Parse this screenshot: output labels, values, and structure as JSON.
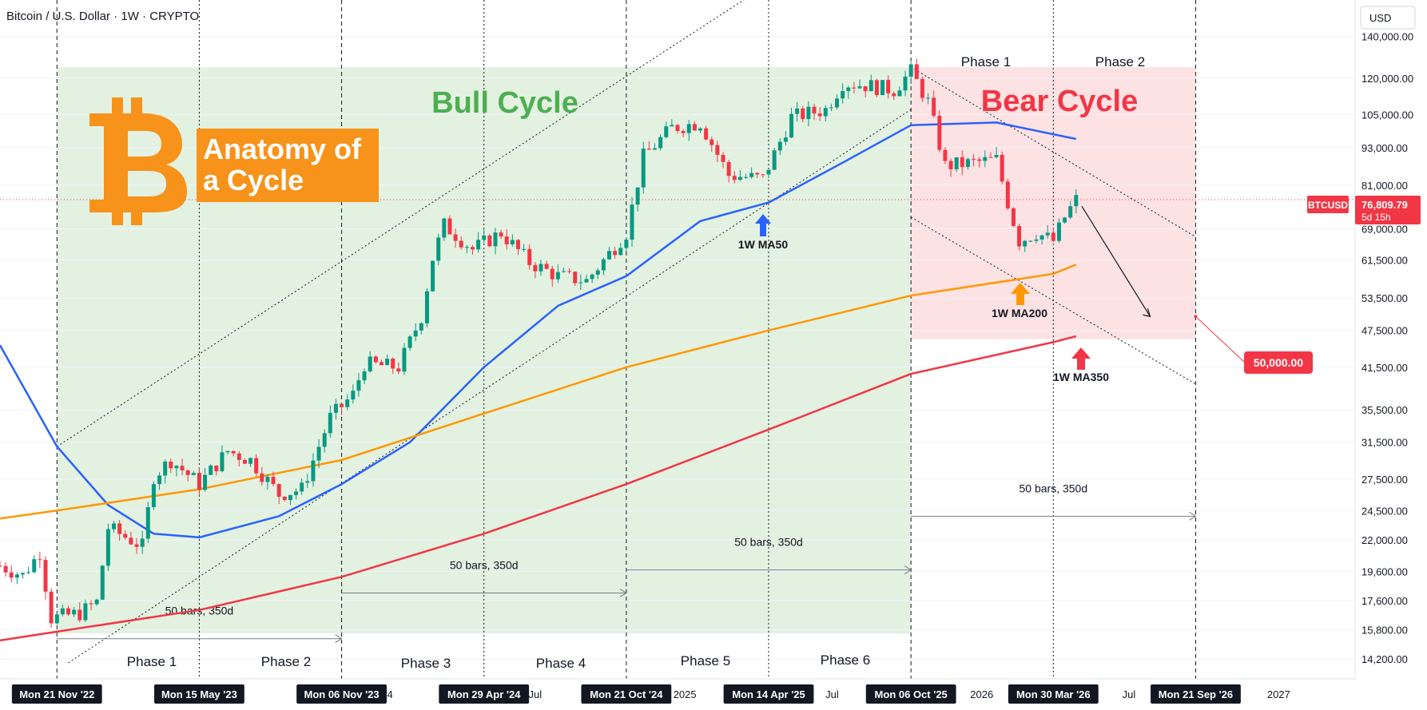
{
  "header": {
    "symbol_title": "Bitcoin / U.S. Dollar · 1W · CRYPTO",
    "currency": "USD"
  },
  "colors": {
    "bull_zone": "#e3f1e1",
    "bear_zone": "#fde2e4",
    "ma50": "#2962ff",
    "ma200": "#ff9800",
    "ma350": "#f23645",
    "candle_up": "#089981",
    "candle_down": "#f23645",
    "bitcoin_orange": "#f7931a",
    "bull_text": "#4caf50",
    "bear_text": "#f23645"
  },
  "icons": {
    "logo": "bitcoin-logo-icon",
    "arrow": "up-arrow-icon"
  },
  "annotations": {
    "bull_cycle": "Bull Cycle",
    "bear_cycle": "Bear Cycle",
    "anatomy_line1": "Anatomy of",
    "anatomy_line2": "a Cycle",
    "bars_label": "50 bars, 350d",
    "ma50_label": "1W MA50",
    "ma200_label": "1W MA200",
    "ma350_label": "1W MA350",
    "target_label": "50,000.00",
    "phases_bottom": [
      "Phase 1",
      "Phase 2",
      "Phase 3",
      "Phase 4",
      "Phase 5",
      "Phase 6"
    ],
    "phases_top": [
      "Phase 1",
      "Phase 2"
    ]
  },
  "price_tag": {
    "symbol": "BTCUSD",
    "price": "76,809.79",
    "countdown": "5d 15h"
  },
  "chart_data": {
    "type": "line",
    "title": "Bitcoin / U.S. Dollar · 1W · CRYPTO",
    "yscale": "log",
    "ylim": [
      13200,
      160000
    ],
    "xlim": [
      "2022-09-12",
      "2027-04-05"
    ],
    "y_ticks": [
      14200,
      15800,
      17600,
      19600,
      22000,
      24500,
      27500,
      31500,
      35500,
      41500,
      47500,
      53500,
      61500,
      69000,
      81000,
      93000,
      105000,
      120000,
      140000
    ],
    "y_tick_labels": [
      "14,200.00",
      "15,800.00",
      "17,600.00",
      "19,600.00",
      "22,000.00",
      "24,500.00",
      "27,500.00",
      "31,500.00",
      "35,500.00",
      "41,500.00",
      "47,500.00",
      "53,500.00",
      "61,500.00",
      "69,000.00",
      "81,000.00",
      "93,000.00",
      "105,000.00",
      "120,000.00",
      "140,000.00"
    ],
    "x_ticks": [
      {
        "date": "2022-11-21",
        "label": "Mon 21 Nov '22",
        "highlight": true
      },
      {
        "date": "2023-05-15",
        "label": "Mon 15 May '23",
        "highlight": true
      },
      {
        "date": "2023-11-06",
        "label": "Mon 06 Nov '23",
        "highlight": true
      },
      {
        "date": "2024-01-01",
        "label": "24",
        "highlight": false
      },
      {
        "date": "2024-04-29",
        "label": "Mon 29 Apr '24",
        "highlight": true
      },
      {
        "date": "2024-07-01",
        "label": "Jul",
        "highlight": false
      },
      {
        "date": "2024-10-21",
        "label": "Mon 21 Oct '24",
        "highlight": true
      },
      {
        "date": "2025-01-01",
        "label": "2025",
        "highlight": false
      },
      {
        "date": "2025-04-14",
        "label": "Mon 14 Apr '25",
        "highlight": true
      },
      {
        "date": "2025-07-01",
        "label": "Jul",
        "highlight": false
      },
      {
        "date": "2025-10-06",
        "label": "Mon 06 Oct '25",
        "highlight": true
      },
      {
        "date": "2026-01-01",
        "label": "2026",
        "highlight": false
      },
      {
        "date": "2026-03-30",
        "label": "Mon 30 Mar '26",
        "highlight": true
      },
      {
        "date": "2026-07-01",
        "label": "Jul",
        "highlight": false
      },
      {
        "date": "2026-09-21",
        "label": "Mon 21 Sep '26",
        "highlight": true
      },
      {
        "date": "2027-01-01",
        "label": "2027",
        "highlight": false
      }
    ],
    "cycle_markers": [
      "2022-11-21",
      "2023-11-06",
      "2024-10-21",
      "2025-10-06",
      "2026-09-21"
    ],
    "minor_markers": [
      "2023-05-15",
      "2024-04-29",
      "2025-04-14",
      "2026-03-30"
    ],
    "zones": [
      {
        "name": "Bull Cycle",
        "x": [
          "2022-11-21",
          "2025-10-06"
        ],
        "y": [
          15600,
          125000
        ]
      },
      {
        "name": "Bear Cycle",
        "x": [
          "2025-10-06",
          "2026-09-21"
        ],
        "y": [
          46000,
          125000
        ]
      }
    ],
    "price_path": [
      {
        "date": "2022-09-12",
        "close": 20000
      },
      {
        "date": "2022-10-10",
        "close": 19300
      },
      {
        "date": "2022-10-31",
        "close": 21000
      },
      {
        "date": "2022-11-14",
        "close": 16500
      },
      {
        "date": "2022-12-19",
        "close": 16800
      },
      {
        "date": "2023-01-09",
        "close": 17500
      },
      {
        "date": "2023-01-23",
        "close": 23000
      },
      {
        "date": "2023-03-06",
        "close": 21500
      },
      {
        "date": "2023-03-20",
        "close": 27800
      },
      {
        "date": "2023-04-10",
        "close": 29500
      },
      {
        "date": "2023-05-15",
        "close": 27000
      },
      {
        "date": "2023-06-19",
        "close": 30500
      },
      {
        "date": "2023-07-17",
        "close": 29500
      },
      {
        "date": "2023-08-21",
        "close": 26000
      },
      {
        "date": "2023-09-18",
        "close": 26500
      },
      {
        "date": "2023-10-23",
        "close": 34500
      },
      {
        "date": "2023-11-20",
        "close": 37500
      },
      {
        "date": "2023-12-04",
        "close": 42000
      },
      {
        "date": "2024-01-15",
        "close": 41500
      },
      {
        "date": "2024-02-12",
        "close": 50000
      },
      {
        "date": "2024-02-26",
        "close": 62000
      },
      {
        "date": "2024-03-11",
        "close": 70000
      },
      {
        "date": "2024-04-15",
        "close": 64000
      },
      {
        "date": "2024-05-20",
        "close": 68000
      },
      {
        "date": "2024-06-24",
        "close": 61000
      },
      {
        "date": "2024-07-29",
        "close": 58000
      },
      {
        "date": "2024-09-02",
        "close": 57000
      },
      {
        "date": "2024-09-30",
        "close": 63000
      },
      {
        "date": "2024-10-21",
        "close": 68000
      },
      {
        "date": "2024-11-11",
        "close": 90000
      },
      {
        "date": "2024-12-16",
        "close": 100000
      },
      {
        "date": "2025-01-20",
        "close": 102000
      },
      {
        "date": "2025-02-24",
        "close": 84000
      },
      {
        "date": "2025-04-07",
        "close": 83000
      },
      {
        "date": "2025-05-12",
        "close": 104000
      },
      {
        "date": "2025-06-23",
        "close": 107000
      },
      {
        "date": "2025-07-14",
        "close": 118000
      },
      {
        "date": "2025-08-11",
        "close": 117000
      },
      {
        "date": "2025-09-15",
        "close": 115000
      },
      {
        "date": "2025-10-06",
        "close": 123000
      },
      {
        "date": "2025-10-27",
        "close": 110000
      },
      {
        "date": "2025-11-17",
        "close": 87000
      },
      {
        "date": "2025-12-22",
        "close": 88000
      },
      {
        "date": "2026-01-19",
        "close": 89000
      },
      {
        "date": "2026-02-02",
        "close": 76000
      },
      {
        "date": "2026-02-16",
        "close": 66000
      },
      {
        "date": "2026-03-09",
        "close": 68000
      },
      {
        "date": "2026-03-30",
        "close": 66000
      },
      {
        "date": "2026-04-13",
        "close": 72000
      },
      {
        "date": "2026-04-27",
        "close": 76810
      }
    ],
    "series": [
      {
        "name": "1W MA50",
        "color": "#2962ff",
        "points": [
          {
            "date": "2022-09-12",
            "value": 45000
          },
          {
            "date": "2022-11-21",
            "value": 31000
          },
          {
            "date": "2023-01-23",
            "value": 25000
          },
          {
            "date": "2023-03-20",
            "value": 22500
          },
          {
            "date": "2023-05-15",
            "value": 22200
          },
          {
            "date": "2023-08-21",
            "value": 24000
          },
          {
            "date": "2023-11-06",
            "value": 27000
          },
          {
            "date": "2024-01-29",
            "value": 31500
          },
          {
            "date": "2024-04-29",
            "value": 41500
          },
          {
            "date": "2024-07-29",
            "value": 52000
          },
          {
            "date": "2024-10-21",
            "value": 58000
          },
          {
            "date": "2025-01-20",
            "value": 71000
          },
          {
            "date": "2025-04-14",
            "value": 76000
          },
          {
            "date": "2025-07-14",
            "value": 88000
          },
          {
            "date": "2025-10-06",
            "value": 101000
          },
          {
            "date": "2026-01-19",
            "value": 102000
          },
          {
            "date": "2026-04-27",
            "value": 96000
          }
        ]
      },
      {
        "name": "1W MA200",
        "color": "#ff9800",
        "points": [
          {
            "date": "2022-09-12",
            "value": 23800
          },
          {
            "date": "2022-11-21",
            "value": 24500
          },
          {
            "date": "2023-05-15",
            "value": 26500
          },
          {
            "date": "2023-11-06",
            "value": 29500
          },
          {
            "date": "2024-04-29",
            "value": 35000
          },
          {
            "date": "2024-10-21",
            "value": 41500
          },
          {
            "date": "2025-04-14",
            "value": 47500
          },
          {
            "date": "2025-10-06",
            "value": 54000
          },
          {
            "date": "2026-03-30",
            "value": 58500
          },
          {
            "date": "2026-04-27",
            "value": 60500
          }
        ]
      },
      {
        "name": "1W MA350",
        "color": "#f23645",
        "points": [
          {
            "date": "2022-09-12",
            "value": 15200
          },
          {
            "date": "2022-11-21",
            "value": 15700
          },
          {
            "date": "2023-05-15",
            "value": 17000
          },
          {
            "date": "2023-11-06",
            "value": 19200
          },
          {
            "date": "2024-04-29",
            "value": 22500
          },
          {
            "date": "2024-10-21",
            "value": 27000
          },
          {
            "date": "2025-04-14",
            "value": 33000
          },
          {
            "date": "2025-10-06",
            "value": 40500
          },
          {
            "date": "2026-03-30",
            "value": 45500
          },
          {
            "date": "2026-04-27",
            "value": 46500
          }
        ]
      }
    ],
    "channel_lines": [
      {
        "from": {
          "date": "2022-11-21",
          "value": 31000
        },
        "to": {
          "date": "2025-07-07",
          "value": 200000
        }
      },
      {
        "from": {
          "date": "2022-12-05",
          "value": 14000
        },
        "to": {
          "date": "2025-10-06",
          "value": 107000
        }
      },
      {
        "from": {
          "date": "2025-10-06",
          "value": 125000
        },
        "to": {
          "date": "2026-09-21",
          "value": 67000
        }
      },
      {
        "from": {
          "date": "2025-10-06",
          "value": 72000
        },
        "to": {
          "date": "2026-09-21",
          "value": 39000
        }
      }
    ],
    "projection": {
      "from": {
        "date": "2026-05-04",
        "value": 75000
      },
      "to": {
        "date": "2026-07-27",
        "value": 50000
      }
    },
    "target": {
      "date": "2026-09-21",
      "value": 50000
    },
    "date_ranges": [
      {
        "from": "2022-11-21",
        "to": "2023-11-06",
        "value": 15300
      },
      {
        "from": "2023-11-06",
        "to": "2024-10-21",
        "value": 18100
      },
      {
        "from": "2024-10-21",
        "to": "2025-10-06",
        "value": 19700
      },
      {
        "from": "2025-10-06",
        "to": "2026-09-21",
        "value": 24000
      }
    ],
    "current_price": 76809.79
  }
}
